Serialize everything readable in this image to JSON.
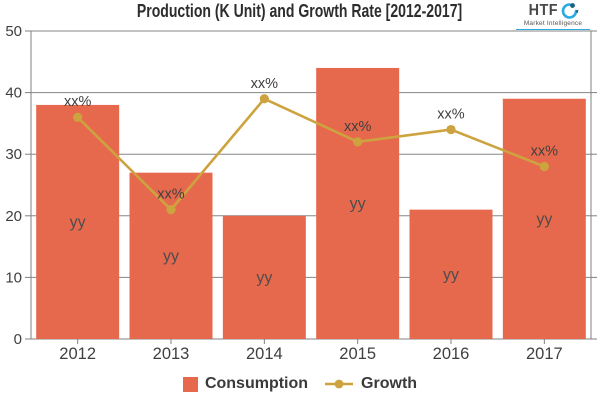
{
  "title": "Production (K Unit) and Growth Rate [2012-2017]",
  "logo": {
    "name": "HTF",
    "subtitle": "Market Intelligence"
  },
  "legend": [
    {
      "label": "Consumption",
      "marker": "square"
    },
    {
      "label": "Growth",
      "marker": "line-dot"
    }
  ],
  "colors": {
    "bar": "#e7694d",
    "line": "#cda33f",
    "grid": "#858585",
    "axis": "#808080",
    "tick_text": "#3f3f3f",
    "bar_label_text": "#4d4d4d",
    "point_label_text": "#3f3f3f",
    "title_text": "#2d2d2d",
    "logo_blue": "#2ba9e0",
    "logo_dark": "#1b5e86"
  },
  "chart_data": {
    "type": "bar",
    "categories": [
      "2012",
      "2013",
      "2014",
      "2015",
      "2016",
      "2017"
    ],
    "series": [
      {
        "name": "Consumption",
        "type": "bar",
        "values": [
          38,
          27,
          20,
          44,
          21,
          39
        ],
        "point_labels": [
          "yy",
          "yy",
          "yy",
          "yy",
          "yy",
          "yy"
        ]
      },
      {
        "name": "Growth",
        "type": "line",
        "values": [
          36,
          21,
          39,
          32,
          34,
          28
        ],
        "point_labels": [
          "xx%",
          "xx%",
          "xx%",
          "xx%",
          "xx%",
          "xx%"
        ]
      }
    ],
    "title": "Production (K Unit) and Growth Rate [2012-2017]",
    "xlabel": "",
    "ylabel": "",
    "ylim": [
      0,
      50
    ],
    "ytick_interval": 10,
    "grid": true,
    "legend_position": "bottom"
  }
}
